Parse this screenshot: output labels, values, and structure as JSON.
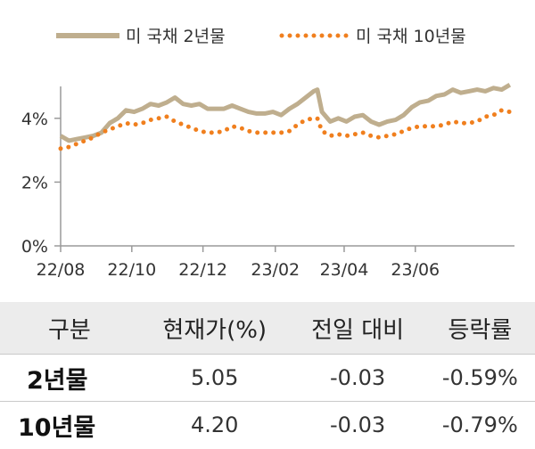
{
  "chart_data": {
    "type": "line",
    "title": "",
    "xlabel": "",
    "ylabel": "",
    "ylim": [
      0,
      5
    ],
    "y_ticks": [
      "0%",
      "2%",
      "4%"
    ],
    "y_tick_values": [
      0,
      2,
      4
    ],
    "x_ticks": [
      "22/08",
      "22/10",
      "22/12",
      "23/02",
      "23/04",
      "23/06"
    ],
    "x_tick_values": [
      "2022-08-01",
      "2022-10-01",
      "2022-12-01",
      "2023-02-01",
      "2023-04-01",
      "2023-06-01"
    ],
    "x_range": [
      "2022-08-01",
      "2023-08-25"
    ],
    "legend_position": "top",
    "grid": false,
    "series": [
      {
        "name": "미 국채 2년물",
        "style": "solid-thick",
        "color": "#bfae8e",
        "x": [
          "2022-08-01",
          "2022-08-08",
          "2022-08-15",
          "2022-08-22",
          "2022-08-29",
          "2022-09-05",
          "2022-09-12",
          "2022-09-19",
          "2022-09-26",
          "2022-10-03",
          "2022-10-10",
          "2022-10-17",
          "2022-10-24",
          "2022-10-31",
          "2022-11-07",
          "2022-11-14",
          "2022-11-21",
          "2022-11-28",
          "2022-12-05",
          "2022-12-12",
          "2022-12-19",
          "2022-12-26",
          "2023-01-02",
          "2023-01-09",
          "2023-01-16",
          "2023-01-23",
          "2023-01-30",
          "2023-02-06",
          "2023-02-13",
          "2023-02-20",
          "2023-02-27",
          "2023-03-06",
          "2023-03-09",
          "2023-03-13",
          "2023-03-20",
          "2023-03-27",
          "2023-04-03",
          "2023-04-10",
          "2023-04-17",
          "2023-04-24",
          "2023-05-01",
          "2023-05-08",
          "2023-05-15",
          "2023-05-22",
          "2023-05-29",
          "2023-06-05",
          "2023-06-12",
          "2023-06-19",
          "2023-06-26",
          "2023-07-03",
          "2023-07-10",
          "2023-07-17",
          "2023-07-24",
          "2023-07-31",
          "2023-08-07",
          "2023-08-14",
          "2023-08-21"
        ],
        "values": [
          3.45,
          3.3,
          3.35,
          3.4,
          3.45,
          3.55,
          3.85,
          4.0,
          4.25,
          4.2,
          4.3,
          4.45,
          4.4,
          4.5,
          4.65,
          4.45,
          4.4,
          4.45,
          4.3,
          4.3,
          4.3,
          4.4,
          4.3,
          4.2,
          4.15,
          4.15,
          4.2,
          4.1,
          4.3,
          4.45,
          4.65,
          4.85,
          4.9,
          4.2,
          3.9,
          4.0,
          3.9,
          4.05,
          4.1,
          3.9,
          3.8,
          3.9,
          3.95,
          4.1,
          4.35,
          4.5,
          4.55,
          4.7,
          4.75,
          4.9,
          4.8,
          4.85,
          4.9,
          4.85,
          4.95,
          4.9,
          5.05
        ]
      },
      {
        "name": "미 국채 10년물",
        "style": "dotted",
        "color": "#f07f1e",
        "x": [
          "2022-08-01",
          "2022-08-08",
          "2022-08-15",
          "2022-08-22",
          "2022-08-29",
          "2022-09-05",
          "2022-09-12",
          "2022-09-19",
          "2022-09-26",
          "2022-10-03",
          "2022-10-10",
          "2022-10-17",
          "2022-10-24",
          "2022-10-31",
          "2022-11-07",
          "2022-11-14",
          "2022-11-21",
          "2022-11-28",
          "2022-12-05",
          "2022-12-12",
          "2022-12-19",
          "2022-12-26",
          "2023-01-02",
          "2023-01-09",
          "2023-01-16",
          "2023-01-23",
          "2023-01-30",
          "2023-02-06",
          "2023-02-13",
          "2023-02-20",
          "2023-02-27",
          "2023-03-06",
          "2023-03-09",
          "2023-03-13",
          "2023-03-20",
          "2023-03-27",
          "2023-04-03",
          "2023-04-10",
          "2023-04-17",
          "2023-04-24",
          "2023-05-01",
          "2023-05-08",
          "2023-05-15",
          "2023-05-22",
          "2023-05-29",
          "2023-06-05",
          "2023-06-12",
          "2023-06-19",
          "2023-06-26",
          "2023-07-03",
          "2023-07-10",
          "2023-07-17",
          "2023-07-24",
          "2023-07-31",
          "2023-08-07",
          "2023-08-14",
          "2023-08-21"
        ],
        "values": [
          3.05,
          3.1,
          3.2,
          3.3,
          3.4,
          3.55,
          3.65,
          3.75,
          3.85,
          3.8,
          3.85,
          3.95,
          4.0,
          4.05,
          3.9,
          3.8,
          3.7,
          3.6,
          3.55,
          3.55,
          3.6,
          3.75,
          3.7,
          3.6,
          3.55,
          3.55,
          3.55,
          3.55,
          3.6,
          3.8,
          3.95,
          4.0,
          4.0,
          3.6,
          3.45,
          3.5,
          3.45,
          3.5,
          3.55,
          3.45,
          3.4,
          3.45,
          3.5,
          3.6,
          3.7,
          3.75,
          3.75,
          3.75,
          3.8,
          3.9,
          3.85,
          3.85,
          3.9,
          4.05,
          4.1,
          4.25,
          4.2
        ]
      }
    ]
  },
  "table": {
    "headers": [
      "구분",
      "현재가(%)",
      "전일 대비",
      "등락률"
    ],
    "rows": [
      {
        "label": "2년물",
        "price": "5.05",
        "change": "-0.03",
        "pct": "-0.59%"
      },
      {
        "label": "10년물",
        "price": "4.20",
        "change": "-0.03",
        "pct": "-0.79%"
      }
    ]
  }
}
